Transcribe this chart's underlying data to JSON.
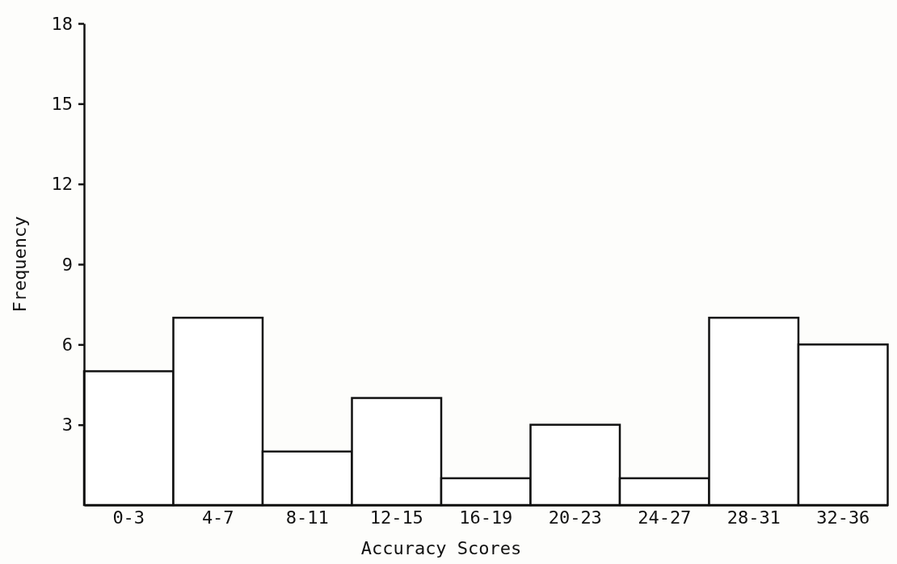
{
  "chart_data": {
    "type": "bar",
    "xlabel": "Accuracy Scores",
    "ylabel": "Frequency",
    "categories": [
      "0-3",
      "4-7",
      "8-11",
      "12-15",
      "16-19",
      "20-23",
      "24-27",
      "28-31",
      "32-36"
    ],
    "values": [
      5,
      7,
      2,
      4,
      1,
      3,
      1,
      7,
      6
    ],
    "color": "#ffffff",
    "ylim": [
      0,
      18
    ],
    "yticks": [
      3,
      6,
      9,
      12,
      15,
      18
    ],
    "grid": false
  }
}
